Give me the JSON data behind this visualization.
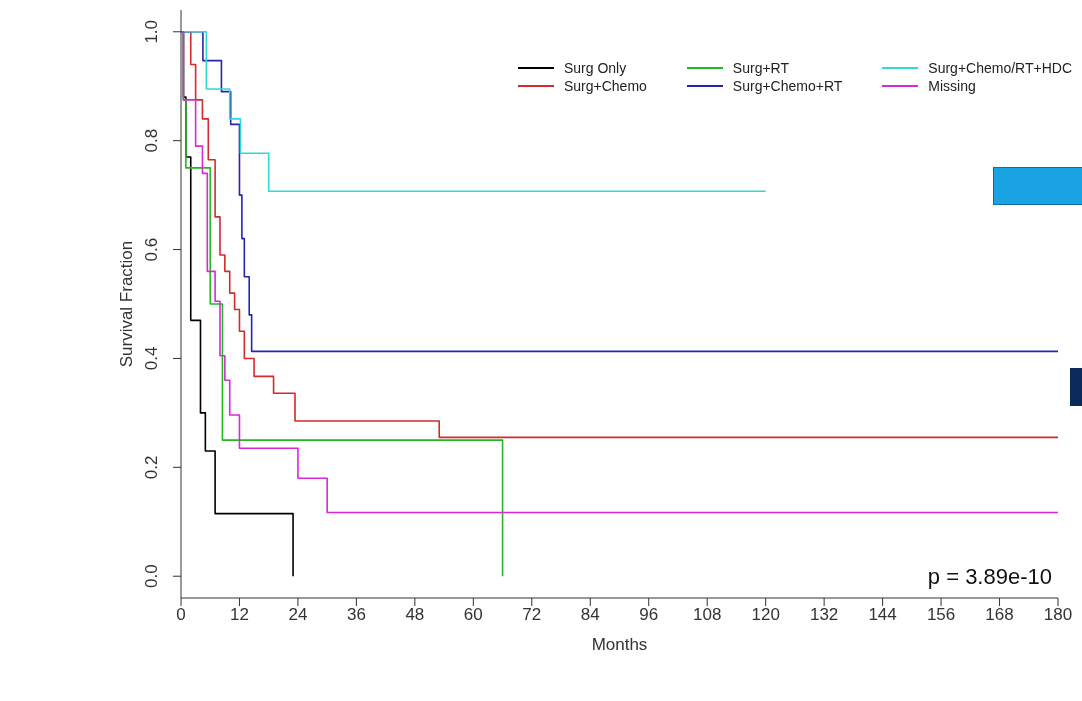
{
  "chart_data": {
    "type": "step",
    "xlabel": "Months",
    "ylabel": "Survival Fraction",
    "xlim": [
      0,
      180
    ],
    "ylim": [
      -0.04,
      1.04
    ],
    "xticks": [
      0,
      12,
      24,
      36,
      48,
      60,
      72,
      84,
      96,
      108,
      120,
      132,
      144,
      156,
      168,
      180
    ],
    "yticks": [
      {
        "value": 0,
        "label": "0.0"
      },
      {
        "value": 0.2,
        "label": "0.2"
      },
      {
        "value": 0.4,
        "label": "0.4"
      },
      {
        "value": 0.6,
        "label": "0.6"
      },
      {
        "value": 0.8,
        "label": "0.8"
      },
      {
        "value": 1,
        "label": "1.0"
      }
    ],
    "legend": "top right",
    "marker": "none",
    "line_style": "solid",
    "annotations": [
      "p = 3.89e-10"
    ],
    "series": [
      {
        "name": "Surg Only",
        "color": "#000000",
        "x": [
          0,
          0.5,
          1,
          2,
          4,
          5,
          7,
          23,
          23
        ],
        "values": [
          1,
          0.88,
          0.77,
          0.47,
          0.3,
          0.23,
          0.115,
          0.115,
          0
        ]
      },
      {
        "name": "Surg+Chemo",
        "color": "#d42a2a",
        "x": [
          0,
          2,
          3,
          4.4,
          5.6,
          7,
          8,
          9,
          10,
          11,
          12,
          13,
          15,
          19,
          23.4,
          53,
          180
        ],
        "values": [
          1,
          0.94,
          0.875,
          0.84,
          0.765,
          0.66,
          0.59,
          0.56,
          0.52,
          0.49,
          0.45,
          0.4,
          0.367,
          0.336,
          0.285,
          0.255,
          0.255
        ]
      },
      {
        "name": "Surg+RT",
        "color": "#22b822",
        "x": [
          0,
          0.5,
          1,
          6,
          8.5,
          66,
          66
        ],
        "values": [
          1,
          0.875,
          0.75,
          0.5,
          0.25,
          0.25,
          0
        ]
      },
      {
        "name": "Surg+Chemo+RT",
        "color": "#2424b4",
        "x": [
          0,
          4.5,
          8.3,
          10.2,
          12,
          12.5,
          13,
          14,
          14.5,
          180
        ],
        "values": [
          1,
          0.947,
          0.89,
          0.83,
          0.7,
          0.62,
          0.55,
          0.48,
          0.413,
          0.413
        ]
      },
      {
        "name": "Surg+Chemo/RT+HDC",
        "color": "#30d8d8",
        "x": [
          0,
          5.2,
          10,
          12.2,
          18,
          120
        ],
        "values": [
          1,
          0.895,
          0.84,
          0.777,
          0.707,
          0.707
        ]
      },
      {
        "name": "Missing",
        "color": "#d828d8",
        "x": [
          0,
          0.5,
          3,
          4.4,
          5.4,
          7,
          8,
          9,
          10,
          12,
          24,
          30,
          180
        ],
        "values": [
          1,
          0.875,
          0.79,
          0.74,
          0.56,
          0.505,
          0.405,
          0.36,
          0.296,
          0.235,
          0.18,
          0.117,
          0.117
        ]
      }
    ]
  }
}
